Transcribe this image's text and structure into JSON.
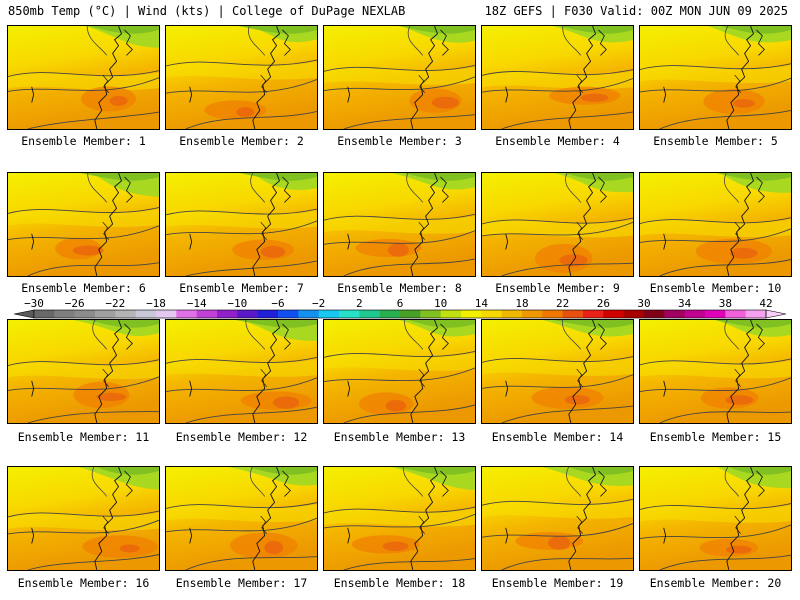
{
  "header": {
    "left": "850mb Temp (°C) | Wind (kts) | College of DuPage NEXLAB",
    "right": "18Z GEFS | F030 Valid: 00Z MON JUN 09 2025"
  },
  "panels": [
    {
      "label": "Ensemble Member: 1"
    },
    {
      "label": "Ensemble Member: 2"
    },
    {
      "label": "Ensemble Member: 3"
    },
    {
      "label": "Ensemble Member: 4"
    },
    {
      "label": "Ensemble Member: 5"
    },
    {
      "label": "Ensemble Member: 6"
    },
    {
      "label": "Ensemble Member: 7"
    },
    {
      "label": "Ensemble Member: 8"
    },
    {
      "label": "Ensemble Member: 9"
    },
    {
      "label": "Ensemble Member: 10"
    },
    {
      "label": "Ensemble Member: 11"
    },
    {
      "label": "Ensemble Member: 12"
    },
    {
      "label": "Ensemble Member: 13"
    },
    {
      "label": "Ensemble Member: 14"
    },
    {
      "label": "Ensemble Member: 15"
    },
    {
      "label": "Ensemble Member: 16"
    },
    {
      "label": "Ensemble Member: 17"
    },
    {
      "label": "Ensemble Member: 18"
    },
    {
      "label": "Ensemble Member: 19"
    },
    {
      "label": "Ensemble Member: 20"
    }
  ],
  "colorbar": {
    "labels": [
      "−30",
      "−26",
      "−22",
      "−18",
      "−14",
      "−10",
      "−6",
      "−2",
      "2",
      "6",
      "10",
      "14",
      "18",
      "22",
      "26",
      "30",
      "34",
      "38",
      "42"
    ],
    "colors": [
      "#696969",
      "#7f7f7f",
      "#8c8c8c",
      "#a0a0a0",
      "#b4b4b4",
      "#c8c8d8",
      "#e4c8f0",
      "#e070e8",
      "#c040d8",
      "#9020c8",
      "#5a18c8",
      "#2020d8",
      "#1050f0",
      "#1490f0",
      "#18c8f0",
      "#28e0c8",
      "#20c890",
      "#28b050",
      "#48a028",
      "#80c020",
      "#c0e010",
      "#f0f000",
      "#f8d800",
      "#f0b800",
      "#f09800",
      "#f07800",
      "#e85010",
      "#e82018",
      "#d00000",
      "#a80000",
      "#800018",
      "#a00060",
      "#c00090",
      "#e000b8",
      "#f060d8",
      "#f8a0f0"
    ]
  }
}
